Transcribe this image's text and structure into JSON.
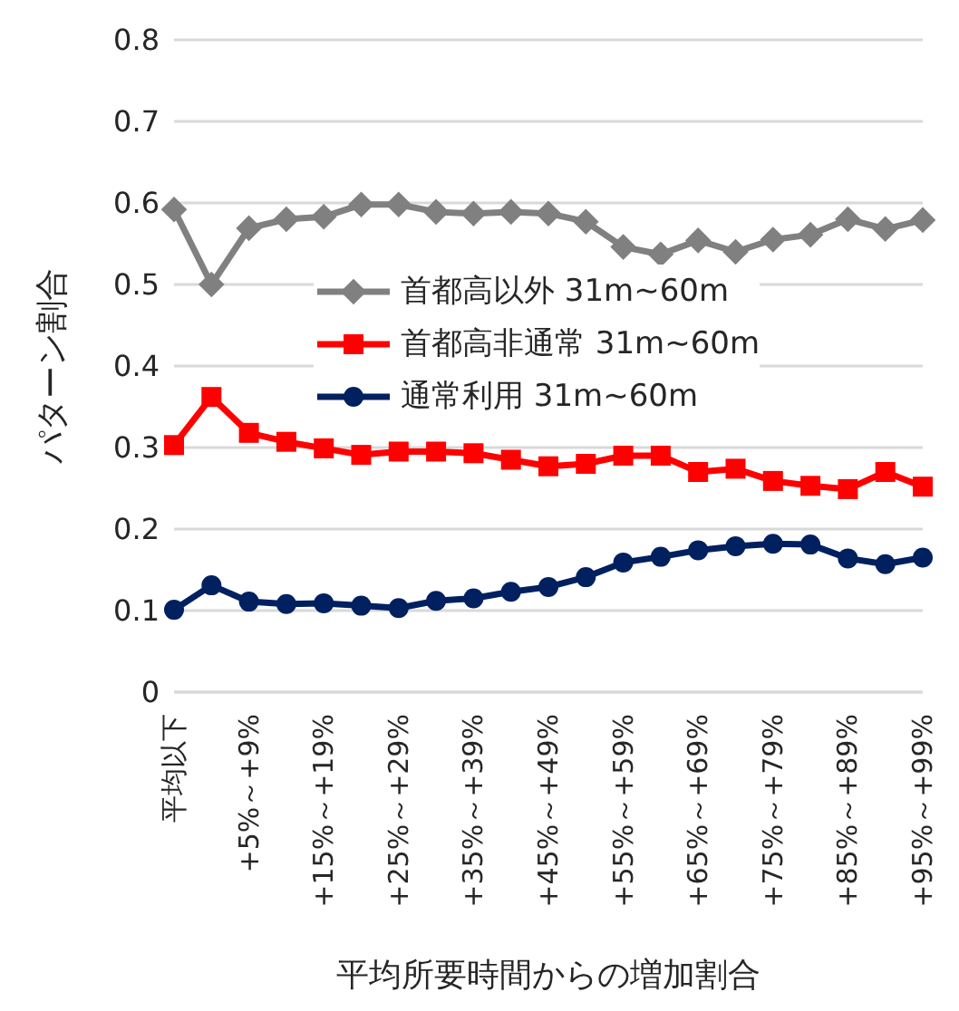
{
  "chart_data": {
    "type": "line",
    "xlabel": "平均所要時間からの増加割合",
    "ylabel": "パターン割合",
    "categories": [
      "平均以下",
      null,
      "+5%～+9%",
      null,
      "+15%～+19%",
      null,
      "+25%～+29%",
      null,
      "+35%～+39%",
      null,
      "+45%～+49%",
      null,
      "+55%～+59%",
      null,
      "+65%～+69%",
      null,
      "+75%～+79%",
      null,
      "+85%～+89%",
      null,
      "+95%～+99%"
    ],
    "series": [
      {
        "name": "首都高以外 31m~60m",
        "color": "#808080",
        "marker": "diamond",
        "values": [
          0.592,
          0.5,
          0.569,
          0.58,
          0.583,
          0.598,
          0.598,
          0.589,
          0.587,
          0.589,
          0.587,
          0.577,
          0.546,
          0.537,
          0.554,
          0.54,
          0.555,
          0.561,
          0.58,
          0.568,
          0.579
        ]
      },
      {
        "name": "首都高非通常 31m~60m",
        "color": "#ff0000",
        "marker": "square",
        "values": [
          0.303,
          0.362,
          0.318,
          0.307,
          0.299,
          0.291,
          0.295,
          0.295,
          0.293,
          0.285,
          0.277,
          0.28,
          0.29,
          0.29,
          0.27,
          0.274,
          0.259,
          0.253,
          0.249,
          0.27,
          0.252
        ]
      },
      {
        "name": "通常利用 31m~60m",
        "color": "#002060",
        "marker": "circle",
        "values": [
          0.101,
          0.131,
          0.111,
          0.108,
          0.109,
          0.106,
          0.103,
          0.112,
          0.115,
          0.123,
          0.129,
          0.141,
          0.159,
          0.166,
          0.174,
          0.179,
          0.182,
          0.181,
          0.164,
          0.157,
          0.165
        ]
      }
    ],
    "ylim": [
      0,
      0.8
    ],
    "yticks": [
      0,
      0.1,
      0.2,
      0.3,
      0.4,
      0.5,
      0.6,
      0.7,
      0.8
    ],
    "grid": "y",
    "legend": "top"
  }
}
